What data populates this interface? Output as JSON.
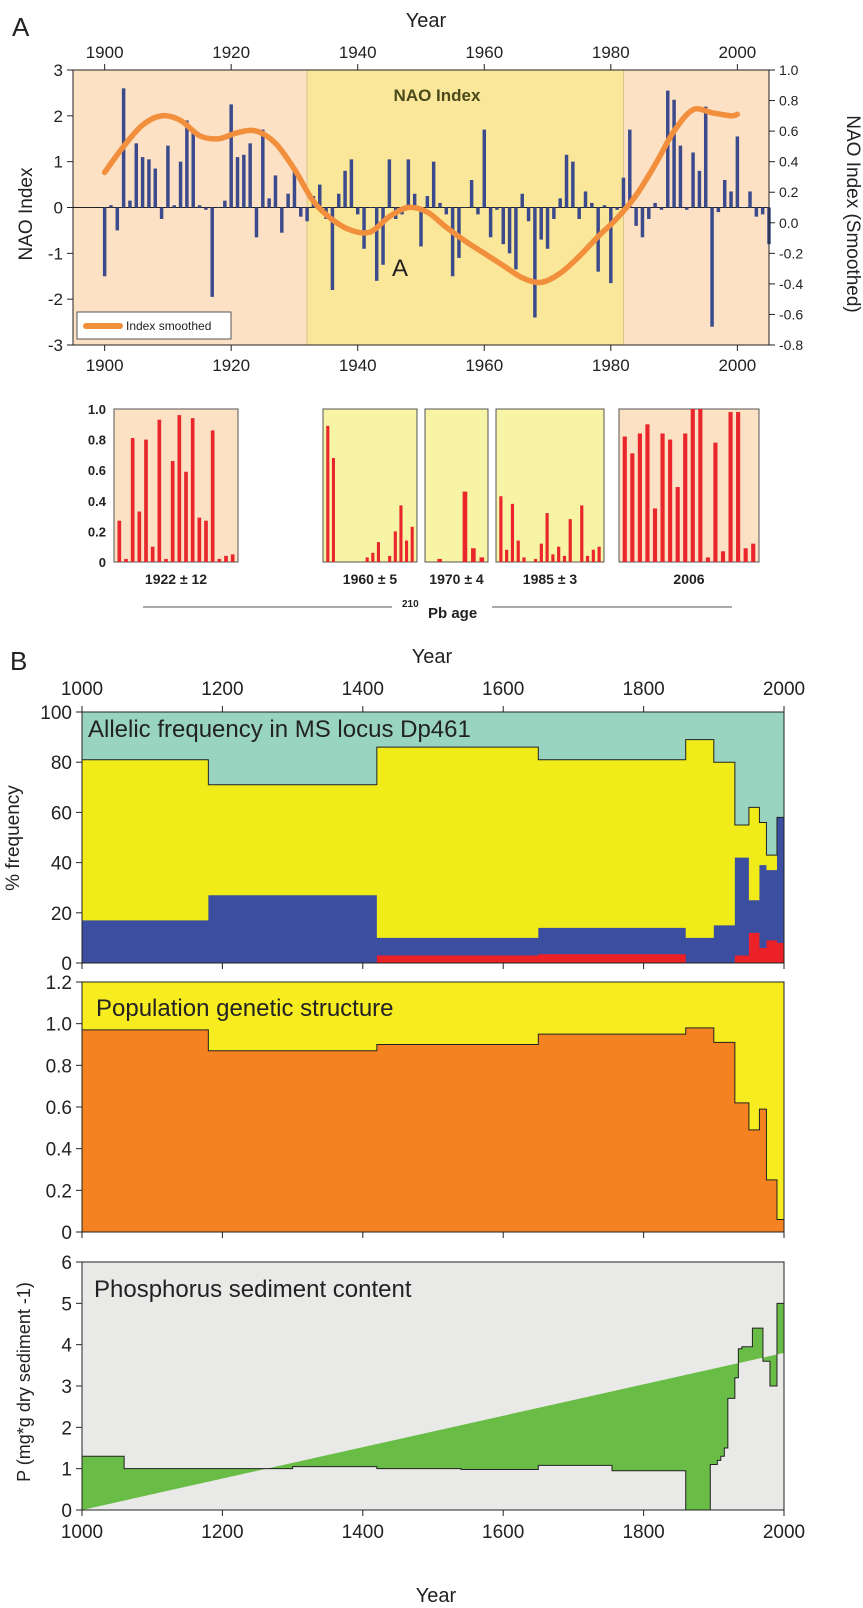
{
  "panel_a": {
    "letter": "A",
    "top_axis_title": "Year",
    "left_axis_title": "NAO Index",
    "right_axis_title": "NAO Index (Smoothed)",
    "inner_title": "NAO Index",
    "marker": "A",
    "legend_label": "Index smoothed",
    "shade_periods": [
      {
        "from": 1895,
        "to": 1932,
        "color": "#fde1c4"
      },
      {
        "from": 1932,
        "to": 1982,
        "color": "#fbe79a"
      },
      {
        "from": 1982,
        "to": 2005,
        "color": "#fde1c4"
      }
    ],
    "colors": {
      "bars": "#3b4a8c",
      "smooth": "#f18f3d"
    }
  },
  "pb_age": {
    "axis_label": "Pb age",
    "superscript": "210",
    "y_ticks": [
      "1.0",
      "0.8",
      "0.6",
      "0.4",
      "0.2",
      "0"
    ],
    "colors": {
      "bars": "#e8262b"
    },
    "boxes": [
      {
        "label": "1922 ± 12",
        "color": "#fde1c4",
        "values": [
          0.27,
          0.02,
          0.81,
          0.33,
          0.8,
          0.1,
          0.93,
          0.02,
          0.66,
          0.96,
          0.59,
          0.94,
          0.29,
          0.27,
          0.86,
          0.02,
          0.04,
          0.05
        ]
      },
      {
        "label": "1960 ± 5",
        "color": "#f8f4a6",
        "values": [
          0.89,
          0.68,
          0.0,
          0.0,
          0.0,
          0.0,
          0.0,
          0.03,
          0.06,
          0.13,
          0.0,
          0.04,
          0.2,
          0.37,
          0.14,
          0.23
        ]
      },
      {
        "label": "1970 ± 4",
        "color": "#f8f4a6",
        "values": [
          0.0,
          0.02,
          0.0,
          0.0,
          0.46,
          0.09,
          0.03
        ]
      },
      {
        "label": "1985 ± 3",
        "color": "#f8f4a6",
        "values": [
          0.43,
          0.08,
          0.38,
          0.14,
          0.03,
          0.0,
          0.02,
          0.12,
          0.32,
          0.05,
          0.1,
          0.04,
          0.28,
          0.0,
          0.37,
          0.04,
          0.08,
          0.1
        ]
      },
      {
        "label": "2006",
        "color": "#fde1c4",
        "values": [
          0.82,
          0.71,
          0.84,
          0.9,
          0.35,
          0.84,
          0.8,
          0.49,
          0.84,
          1.0,
          1.0,
          0.03,
          0.78,
          0.07,
          0.98,
          0.98,
          0.09,
          0.12
        ]
      }
    ]
  },
  "panel_b": {
    "letter": "B",
    "top_axis_title": "Year",
    "bottom_axis_title": "Year",
    "x_ticks": [
      1000,
      1200,
      1400,
      1600,
      1800,
      2000
    ]
  },
  "chart_data": [
    {
      "type": "bar",
      "title": "NAO Index",
      "xlabel": "Year",
      "ylabel": "NAO Index",
      "y2label": "NAO Index (Smoothed)",
      "xlim": [
        1895,
        2005
      ],
      "ylim": [
        -3,
        3
      ],
      "y2lim": [
        -0.8,
        1.0
      ],
      "x_ticks": [
        1900,
        1920,
        1940,
        1960,
        1980,
        2000
      ],
      "y_ticks": [
        3,
        2,
        1,
        0,
        -1,
        -2,
        -3
      ],
      "y2_ticks": [
        "1.0",
        "0.8",
        "0.6",
        "0.4",
        "0.2",
        "0.0",
        "-0.2",
        "-0.4",
        "-0.6",
        "-0.8"
      ],
      "bars": {
        "x": [
          1900,
          1901,
          1902,
          1903,
          1904,
          1905,
          1906,
          1907,
          1908,
          1909,
          1910,
          1911,
          1912,
          1913,
          1914,
          1915,
          1916,
          1917,
          1918,
          1919,
          1920,
          1921,
          1922,
          1923,
          1924,
          1925,
          1926,
          1927,
          1928,
          1929,
          1930,
          1931,
          1932,
          1933,
          1934,
          1935,
          1936,
          1937,
          1938,
          1939,
          1940,
          1941,
          1942,
          1943,
          1944,
          1945,
          1946,
          1947,
          1948,
          1949,
          1950,
          1951,
          1952,
          1953,
          1954,
          1955,
          1956,
          1957,
          1958,
          1959,
          1960,
          1961,
          1962,
          1963,
          1964,
          1965,
          1966,
          1967,
          1968,
          1969,
          1970,
          1971,
          1972,
          1973,
          1974,
          1975,
          1976,
          1977,
          1978,
          1979,
          1980,
          1981,
          1982,
          1983,
          1984,
          1985,
          1986,
          1987,
          1988,
          1989,
          1990,
          1991,
          1992,
          1993,
          1994,
          1995,
          1996,
          1997,
          1998,
          1999,
          2000,
          2001,
          2002,
          2003,
          2004,
          2005
        ],
        "values": [
          -1.5,
          0.05,
          -0.5,
          2.6,
          0.15,
          1.4,
          1.1,
          1.05,
          0.85,
          -0.25,
          1.35,
          0.05,
          1.0,
          1.9,
          1.7,
          0.05,
          -0.05,
          -1.95,
          0.0,
          0.15,
          2.25,
          1.1,
          1.15,
          1.4,
          -0.65,
          1.7,
          0.2,
          0.7,
          -0.55,
          0.3,
          0.85,
          -0.2,
          -0.3,
          0.25,
          0.5,
          -0.25,
          -1.8,
          0.3,
          0.8,
          1.05,
          -0.15,
          -0.9,
          0.0,
          -1.6,
          -1.25,
          1.05,
          -0.25,
          -0.15,
          1.05,
          0.3,
          -0.85,
          0.25,
          1.0,
          0.1,
          -0.15,
          -1.5,
          -1.1,
          0.0,
          0.6,
          -0.15,
          1.7,
          -0.65,
          -0.05,
          -0.8,
          -1.0,
          -1.35,
          0.3,
          -0.3,
          -2.4,
          -0.7,
          -0.9,
          -0.25,
          0.2,
          1.15,
          1.0,
          -0.25,
          0.35,
          0.1,
          -1.4,
          0.05,
          -1.65,
          -0.05,
          0.65,
          1.7,
          -0.4,
          -0.65,
          -0.25,
          0.1,
          -0.05,
          2.55,
          2.35,
          1.35,
          -0.05,
          1.2,
          0.8,
          2.2,
          -2.6,
          -0.1,
          0.6,
          0.35,
          1.55,
          0.0,
          0.35,
          -0.2,
          -0.15,
          -0.8
        ]
      },
      "smoothed": {
        "name": "Index smoothed",
        "x": [
          1900,
          1903,
          1906,
          1909,
          1912,
          1915,
          1918,
          1921,
          1924,
          1927,
          1930,
          1933,
          1936,
          1939,
          1942,
          1945,
          1948,
          1951,
          1954,
          1957,
          1960,
          1963,
          1966,
          1969,
          1972,
          1975,
          1978,
          1981,
          1984,
          1987,
          1990,
          1993,
          1996,
          1999,
          2000
        ],
        "values": [
          0.33,
          0.5,
          0.64,
          0.7,
          0.67,
          0.57,
          0.55,
          0.59,
          0.6,
          0.52,
          0.35,
          0.14,
          0.02,
          -0.05,
          -0.06,
          0.04,
          0.1,
          0.07,
          -0.03,
          -0.12,
          -0.2,
          -0.28,
          -0.36,
          -0.39,
          -0.33,
          -0.22,
          -0.09,
          0.03,
          0.18,
          0.38,
          0.6,
          0.74,
          0.72,
          0.7,
          0.71
        ]
      }
    },
    {
      "type": "area",
      "title": "Allelic frequency in MS locus Dp461",
      "ylabel": "% frequency",
      "xlabel": "Year",
      "xlim": [
        1000,
        2000
      ],
      "ylim": [
        0,
        100
      ],
      "y_ticks": [
        0,
        20,
        40,
        60,
        80,
        100
      ],
      "x_edges": [
        1000,
        1180,
        1420,
        1650,
        1860,
        1900,
        1930,
        1950,
        1965,
        1975,
        1990,
        2000
      ],
      "series": [
        {
          "color": "#ec2027",
          "values": [
            0,
            0,
            3,
            3.5,
            0,
            0,
            3,
            12,
            6,
            9,
            8
          ]
        },
        {
          "color": "#3b4ea0",
          "values": [
            17,
            27,
            10,
            14,
            10,
            15,
            42,
            25,
            39,
            37,
            58
          ]
        },
        {
          "color": "#f1ec19",
          "values": [
            81,
            71,
            86,
            81,
            89,
            80,
            55,
            62,
            56,
            43,
            58
          ]
        },
        {
          "color": "#99d4c1",
          "values": [
            100,
            100,
            100,
            100,
            100,
            100,
            100,
            100,
            100,
            100,
            100
          ]
        }
      ]
    },
    {
      "type": "area",
      "title": "Population genetic structure",
      "xlabel": "Year",
      "ylabel": "",
      "xlim": [
        1000,
        2000
      ],
      "ylim": [
        0,
        1.2
      ],
      "y_ticks": [
        "1.2",
        "1.0",
        "0.8",
        "0.6",
        "0.4",
        "0.2",
        "0"
      ],
      "x_edges": [
        1000,
        1180,
        1420,
        1650,
        1860,
        1900,
        1930,
        1950,
        1965,
        1975,
        1990,
        2000
      ],
      "series": [
        {
          "color": "#f48221",
          "values": [
            0.97,
            0.87,
            0.9,
            0.95,
            0.98,
            0.91,
            0.62,
            0.49,
            0.59,
            0.25,
            0.06
          ]
        },
        {
          "color": "#f7ec20",
          "values": [
            1.2,
            1.2,
            1.2,
            1.2,
            1.2,
            1.2,
            1.2,
            1.2,
            1.2,
            1.2,
            1.2
          ]
        }
      ]
    },
    {
      "type": "area",
      "title": "Phosphorus sediment content",
      "xlabel": "Year",
      "ylabel": "P (mg*g dry sediment -1)",
      "xlim": [
        1000,
        2000
      ],
      "ylim": [
        0,
        6
      ],
      "y_ticks": [
        0,
        1,
        2,
        3,
        4,
        5,
        6
      ],
      "background": "#e9e9e8",
      "color": "#69bc45",
      "x_edges": [
        1000,
        1060,
        1300,
        1420,
        1540,
        1650,
        1755,
        1860,
        1895,
        1905,
        1910,
        1915,
        1920,
        1930,
        1935,
        1940,
        1955,
        1970,
        1980,
        1990,
        2000
      ],
      "values": [
        1.3,
        1.0,
        1.05,
        1.0,
        0.98,
        1.08,
        0.95,
        0,
        1.1,
        1.2,
        1.3,
        1.5,
        2.7,
        3.2,
        3.9,
        3.95,
        4.4,
        3.6,
        3.0,
        5.0,
        3.8
      ]
    }
  ]
}
